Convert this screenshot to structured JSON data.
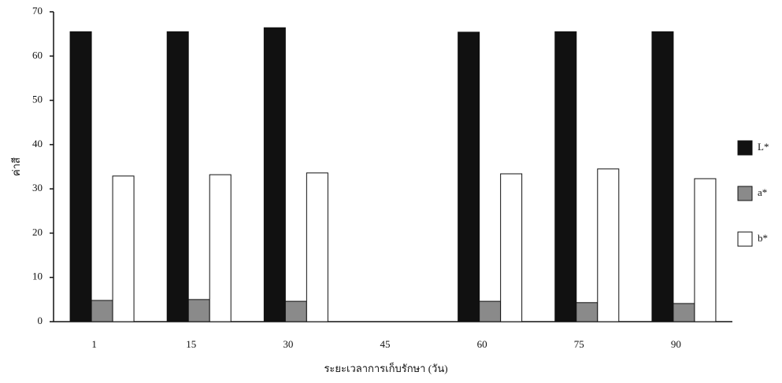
{
  "chart_data": {
    "type": "bar",
    "x_label": "ระยะเวลาการเก็บรักษา (วัน)",
    "y_label": "ค่าสี",
    "categories": [
      "1",
      "15",
      "30",
      "45",
      "60",
      "75",
      "90"
    ],
    "series": [
      {
        "name": "L*",
        "color": "#111111",
        "values": [
          65.5,
          65.5,
          66.4,
          null,
          65.4,
          65.5,
          65.5
        ]
      },
      {
        "name": "a*",
        "color": "#8a8a8a",
        "values": [
          4.8,
          5.0,
          4.6,
          null,
          4.6,
          4.3,
          4.1
        ]
      },
      {
        "name": "b*",
        "color": "#ffffff",
        "values": [
          32.9,
          33.2,
          33.6,
          null,
          33.4,
          34.5,
          32.3
        ]
      }
    ],
    "ylim": [
      0,
      70
    ],
    "yticks": [
      0,
      10,
      20,
      30,
      40,
      50,
      60,
      70
    ],
    "legend": "right"
  }
}
